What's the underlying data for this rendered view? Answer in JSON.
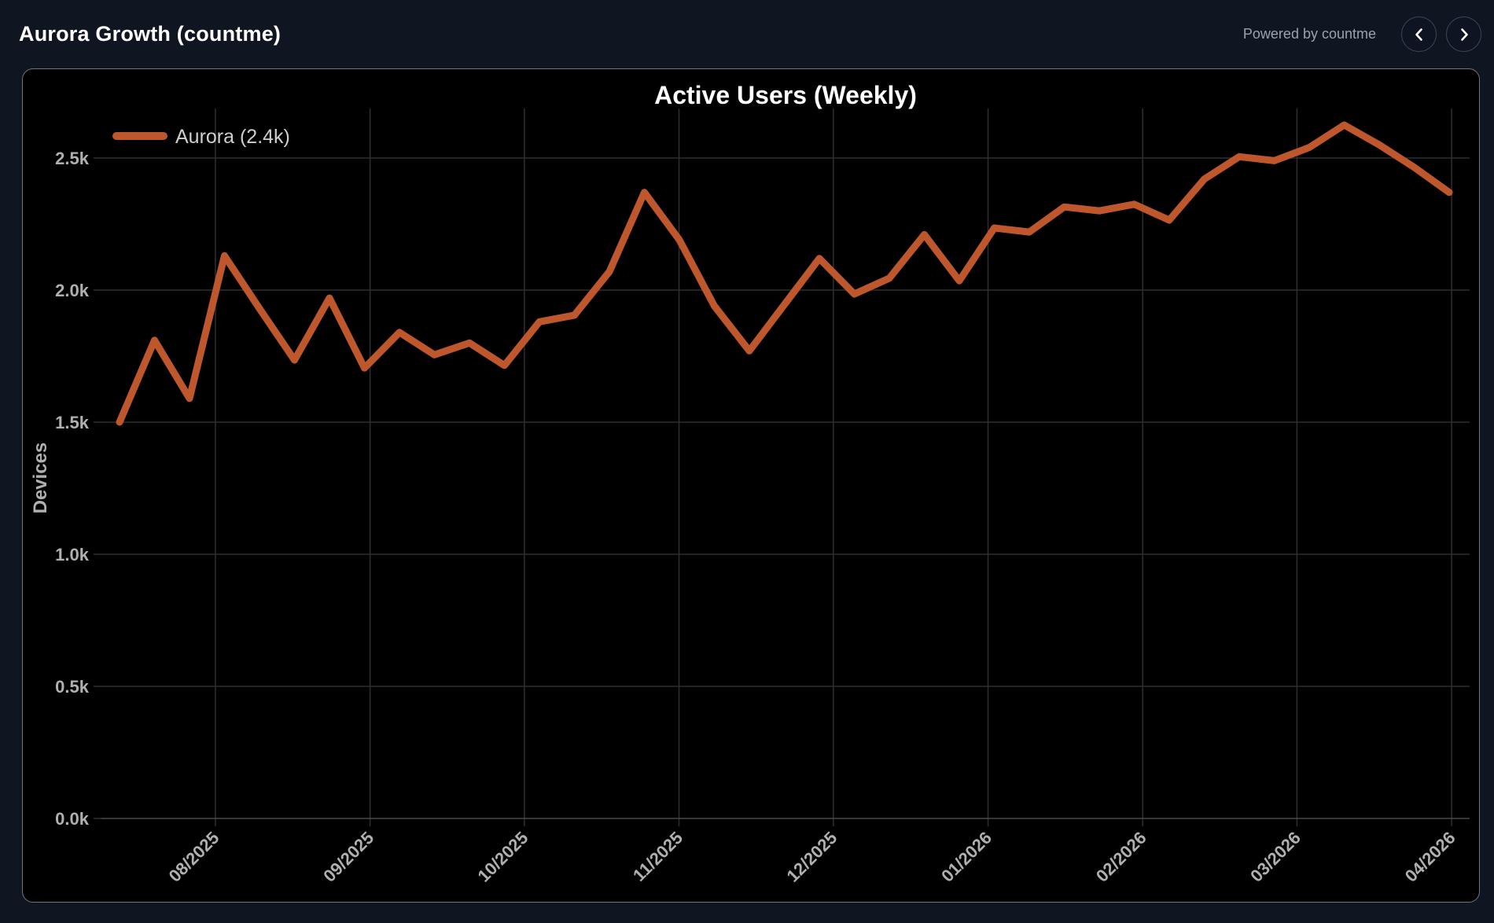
{
  "header": {
    "title": "Aurora Growth (countme)",
    "powered_by": "Powered by countme"
  },
  "colors": {
    "page_background": "#101522",
    "card_background": "#000000",
    "card_border": "#6e7480",
    "line": "#bf572d",
    "grid": "#2f2f2f",
    "zero_axis": "#484848",
    "tick_label": "#b0b0b0",
    "title_text": "#ffffff"
  },
  "chart_data": {
    "type": "line",
    "title": "Active Users (Weekly)",
    "ylabel": "Devices",
    "grid": true,
    "legend_position": "top-left",
    "ylim": [
      0,
      2690
    ],
    "series": [
      {
        "name": "Aurora (2.4k)",
        "color": "#bf572d",
        "values": [
          1500,
          1810,
          1590,
          2130,
          1930,
          1735,
          1970,
          1705,
          1840,
          1755,
          1800,
          1715,
          1880,
          1905,
          2070,
          2370,
          2190,
          1940,
          1770,
          1945,
          2120,
          1985,
          2045,
          2210,
          2035,
          2235,
          2220,
          2315,
          2300,
          2325,
          2265,
          2420,
          2505,
          2490,
          2540,
          2625,
          2550,
          2465,
          2370
        ]
      }
    ],
    "x_tick_labels": [
      "08/2025",
      "09/2025",
      "10/2025",
      "11/2025",
      "12/2025",
      "01/2026",
      "02/2026",
      "03/2026",
      "04/2026"
    ],
    "x_tick_positions": [
      2.74,
      7.16,
      11.57,
      15.99,
      20.4,
      24.82,
      29.24,
      33.65,
      38.07
    ],
    "y_ticks": [
      {
        "value": 0,
        "label": "0.0k"
      },
      {
        "value": 500,
        "label": "0.5k"
      },
      {
        "value": 1000,
        "label": "1.0k"
      },
      {
        "value": 1500,
        "label": "1.5k"
      },
      {
        "value": 2000,
        "label": "2.0k"
      },
      {
        "value": 2500,
        "label": "2.5k"
      }
    ]
  }
}
